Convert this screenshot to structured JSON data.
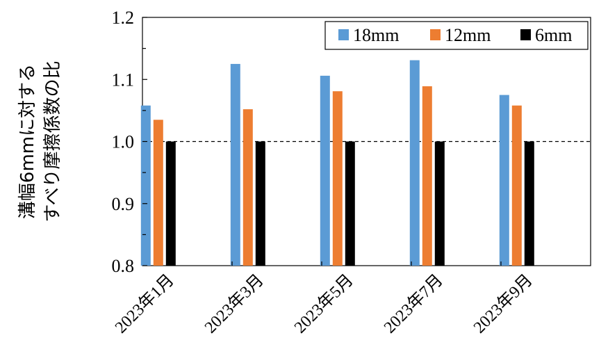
{
  "chart_data": {
    "type": "bar",
    "categories": [
      "2023年1月",
      "2023年3月",
      "2023年5月",
      "2023年7月",
      "2023年9月"
    ],
    "series": [
      {
        "name": "18mm",
        "color": "#5B9BD5",
        "values": [
          1.058,
          1.125,
          1.106,
          1.131,
          1.075
        ]
      },
      {
        "name": "12mm",
        "color": "#ED7D31",
        "values": [
          1.035,
          1.052,
          1.081,
          1.089,
          1.058
        ]
      },
      {
        "name": "6mm",
        "color": "#000000",
        "values": [
          1.0,
          1.0,
          1.0,
          1.0,
          1.0
        ]
      }
    ],
    "ylabel_lines": [
      "溝幅6mmに対する",
      "すべり摩擦係数の比"
    ],
    "ylim": [
      0.8,
      1.2
    ],
    "yticks": [
      "0.8",
      "0.9",
      "1.0",
      "1.1",
      "1.2"
    ],
    "reference_line": 1.0,
    "legend_position": "top-right",
    "grid": false
  }
}
